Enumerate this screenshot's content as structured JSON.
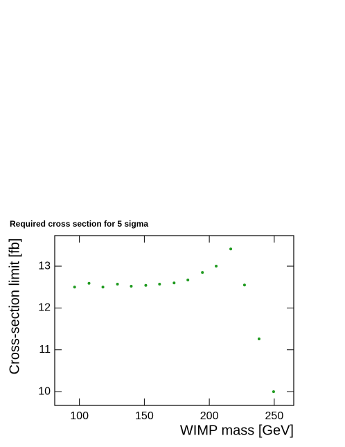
{
  "chart_data": {
    "type": "scatter",
    "title": "Required cross section for 5 sigma",
    "x_label": "WIMP mass [GeV]",
    "y_label": "Cross-section limit [fb]",
    "x": [
      96.3,
      107.4,
      118.1,
      129.3,
      139.9,
      151.1,
      161.7,
      172.9,
      183.5,
      194.7,
      205.3,
      216.5,
      227.1,
      238.3,
      249.5
    ],
    "series": [
      {
        "color": "#1f9a1f",
        "values": [
          12.5,
          12.59,
          12.5,
          12.57,
          12.52,
          12.54,
          12.57,
          12.6,
          12.67,
          12.85,
          13.0,
          13.41,
          12.55,
          11.26,
          10.0
        ]
      }
    ],
    "xlim": [
      81,
      265
    ],
    "ylim": [
      9.67,
      13.73
    ],
    "xticks": [
      100,
      150,
      200,
      250
    ],
    "yticks": [
      10,
      11,
      12,
      13
    ]
  }
}
